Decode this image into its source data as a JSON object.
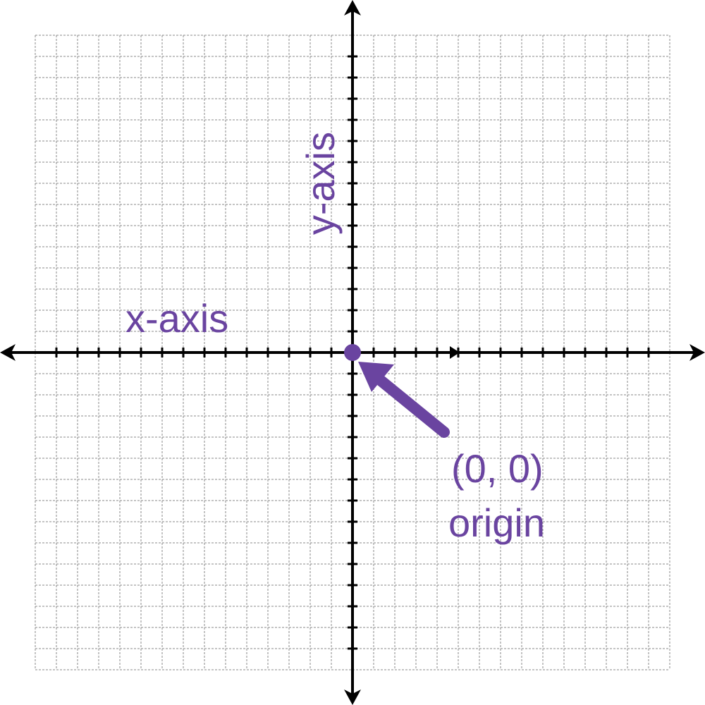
{
  "diagram": {
    "grid": {
      "style": "dashed",
      "color": "#8a8a8a",
      "x_range": [
        -15,
        15
      ],
      "y_range": [
        -15,
        15
      ],
      "step": 1
    },
    "axes": {
      "color": "#000000"
    },
    "labels": {
      "x_axis": "x-axis",
      "y_axis": "y-axis",
      "origin_coords": "(0, 0)",
      "origin_name": "origin"
    },
    "origin_point": {
      "x": 0,
      "y": 0
    },
    "accent_color": "#6a44a0"
  }
}
